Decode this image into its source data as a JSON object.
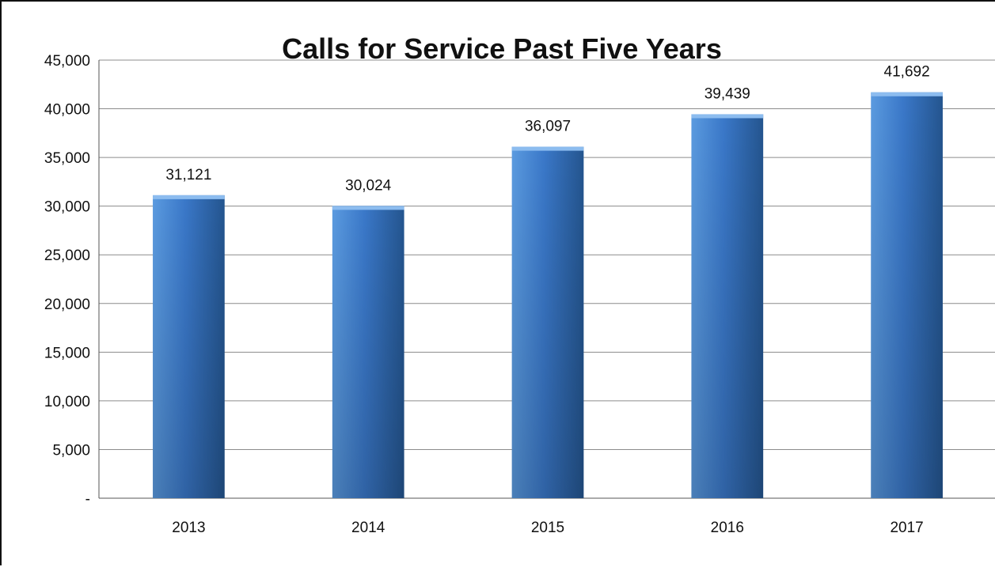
{
  "chart_data": {
    "type": "bar",
    "title": "Calls for Service Past Five Years",
    "categories": [
      "2013",
      "2014",
      "2015",
      "2016",
      "2017"
    ],
    "values": [
      31121,
      30024,
      36097,
      39439,
      41692
    ],
    "data_labels": [
      "31,121",
      "30,024",
      "36,097",
      "39,439",
      "41,692"
    ],
    "ylim": [
      0,
      45000
    ],
    "y_ticks": [
      0,
      5000,
      10000,
      15000,
      20000,
      25000,
      30000,
      35000,
      40000,
      45000
    ],
    "y_tick_labels": [
      "-",
      "5,000",
      "10,000",
      "15,000",
      "20,000",
      "25,000",
      "30,000",
      "35,000",
      "40,000",
      "45,000"
    ],
    "xlabel": "",
    "ylabel": "",
    "grid": true,
    "legend": "none",
    "colors": {
      "bar_light": "#5b9be0",
      "bar_mid": "#3a78c9",
      "bar_dark": "#24558f",
      "gridline": "#8c8c8c",
      "axis": "#555555"
    }
  }
}
